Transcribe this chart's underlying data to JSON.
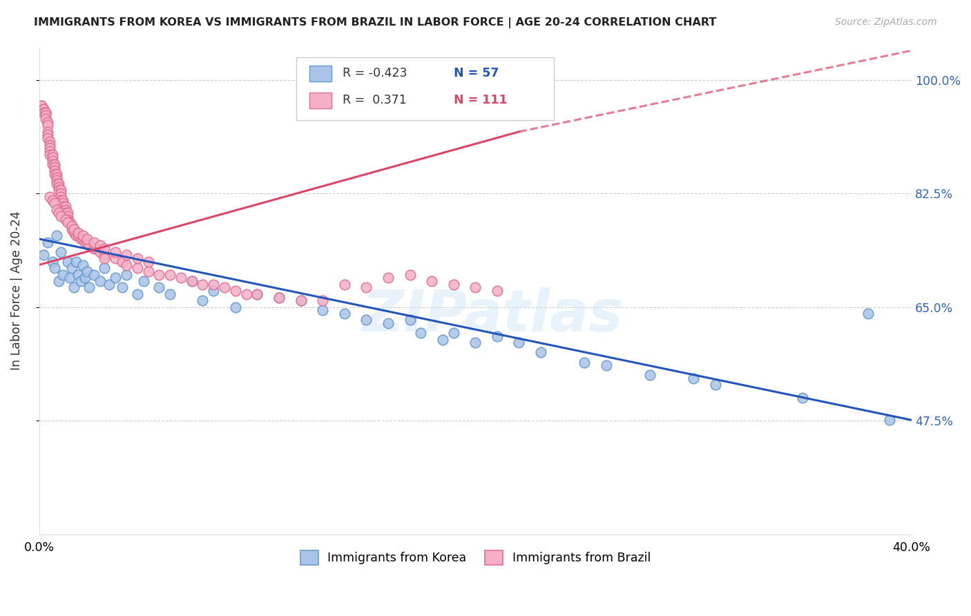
{
  "title": "IMMIGRANTS FROM KOREA VS IMMIGRANTS FROM BRAZIL IN LABOR FORCE | AGE 20-24 CORRELATION CHART",
  "source": "Source: ZipAtlas.com",
  "ylabel": "In Labor Force | Age 20-24",
  "xlim": [
    0.0,
    0.4
  ],
  "ylim": [
    0.3,
    1.05
  ],
  "ytick_vals": [
    0.475,
    0.65,
    0.825,
    1.0
  ],
  "ytick_labels": [
    "47.5%",
    "65.0%",
    "82.5%",
    "100.0%"
  ],
  "xtick_vals": [
    0.0,
    0.1,
    0.2,
    0.3,
    0.4
  ],
  "xtick_labels": [
    "0.0%",
    "",
    "",
    "",
    "40.0%"
  ],
  "korea_color": "#aac4e8",
  "brazil_color": "#f5b0c8",
  "korea_edge": "#6699cc",
  "brazil_edge": "#e07090",
  "korea_line_color": "#2255bb",
  "brazil_line_color": "#dd4466",
  "korea_R": -0.423,
  "korea_N": 57,
  "brazil_R": 0.371,
  "brazil_N": 111,
  "watermark": "ZIPatlas",
  "legend_korea": "Immigrants from Korea",
  "legend_brazil": "Immigrants from Brazil",
  "korea_pts": [
    [
      0.002,
      0.73
    ],
    [
      0.004,
      0.75
    ],
    [
      0.006,
      0.72
    ],
    [
      0.007,
      0.71
    ],
    [
      0.008,
      0.76
    ],
    [
      0.009,
      0.69
    ],
    [
      0.01,
      0.735
    ],
    [
      0.011,
      0.7
    ],
    [
      0.013,
      0.72
    ],
    [
      0.014,
      0.695
    ],
    [
      0.015,
      0.71
    ],
    [
      0.016,
      0.68
    ],
    [
      0.017,
      0.72
    ],
    [
      0.018,
      0.7
    ],
    [
      0.019,
      0.69
    ],
    [
      0.02,
      0.715
    ],
    [
      0.021,
      0.695
    ],
    [
      0.022,
      0.705
    ],
    [
      0.023,
      0.68
    ],
    [
      0.025,
      0.7
    ],
    [
      0.028,
      0.69
    ],
    [
      0.03,
      0.71
    ],
    [
      0.032,
      0.685
    ],
    [
      0.035,
      0.695
    ],
    [
      0.038,
      0.68
    ],
    [
      0.04,
      0.7
    ],
    [
      0.045,
      0.67
    ],
    [
      0.048,
      0.69
    ],
    [
      0.055,
      0.68
    ],
    [
      0.06,
      0.67
    ],
    [
      0.07,
      0.69
    ],
    [
      0.075,
      0.66
    ],
    [
      0.08,
      0.675
    ],
    [
      0.09,
      0.65
    ],
    [
      0.1,
      0.67
    ],
    [
      0.11,
      0.665
    ],
    [
      0.12,
      0.66
    ],
    [
      0.13,
      0.645
    ],
    [
      0.14,
      0.64
    ],
    [
      0.15,
      0.63
    ],
    [
      0.16,
      0.625
    ],
    [
      0.17,
      0.63
    ],
    [
      0.175,
      0.61
    ],
    [
      0.185,
      0.6
    ],
    [
      0.19,
      0.61
    ],
    [
      0.2,
      0.595
    ],
    [
      0.21,
      0.605
    ],
    [
      0.22,
      0.595
    ],
    [
      0.23,
      0.58
    ],
    [
      0.25,
      0.565
    ],
    [
      0.26,
      0.56
    ],
    [
      0.28,
      0.545
    ],
    [
      0.3,
      0.54
    ],
    [
      0.31,
      0.53
    ],
    [
      0.35,
      0.51
    ],
    [
      0.38,
      0.64
    ],
    [
      0.39,
      0.476
    ]
  ],
  "brazil_pts": [
    [
      0.001,
      0.96
    ],
    [
      0.001,
      0.96
    ],
    [
      0.002,
      0.955
    ],
    [
      0.002,
      0.955
    ],
    [
      0.002,
      0.95
    ],
    [
      0.003,
      0.95
    ],
    [
      0.003,
      0.95
    ],
    [
      0.003,
      0.945
    ],
    [
      0.003,
      0.94
    ],
    [
      0.004,
      0.935
    ],
    [
      0.004,
      0.93
    ],
    [
      0.004,
      0.92
    ],
    [
      0.004,
      0.915
    ],
    [
      0.004,
      0.91
    ],
    [
      0.005,
      0.905
    ],
    [
      0.005,
      0.9
    ],
    [
      0.005,
      0.895
    ],
    [
      0.005,
      0.89
    ],
    [
      0.005,
      0.885
    ],
    [
      0.006,
      0.885
    ],
    [
      0.006,
      0.88
    ],
    [
      0.006,
      0.875
    ],
    [
      0.006,
      0.87
    ],
    [
      0.007,
      0.87
    ],
    [
      0.007,
      0.865
    ],
    [
      0.007,
      0.86
    ],
    [
      0.007,
      0.855
    ],
    [
      0.008,
      0.855
    ],
    [
      0.008,
      0.85
    ],
    [
      0.008,
      0.845
    ],
    [
      0.008,
      0.84
    ],
    [
      0.009,
      0.84
    ],
    [
      0.009,
      0.835
    ],
    [
      0.009,
      0.83
    ],
    [
      0.01,
      0.83
    ],
    [
      0.01,
      0.825
    ],
    [
      0.01,
      0.82
    ],
    [
      0.01,
      0.815
    ],
    [
      0.011,
      0.815
    ],
    [
      0.011,
      0.81
    ],
    [
      0.011,
      0.805
    ],
    [
      0.012,
      0.805
    ],
    [
      0.012,
      0.8
    ],
    [
      0.012,
      0.795
    ],
    [
      0.013,
      0.795
    ],
    [
      0.013,
      0.79
    ],
    [
      0.013,
      0.785
    ],
    [
      0.014,
      0.78
    ],
    [
      0.014,
      0.78
    ],
    [
      0.015,
      0.775
    ],
    [
      0.015,
      0.77
    ],
    [
      0.016,
      0.77
    ],
    [
      0.016,
      0.765
    ],
    [
      0.017,
      0.76
    ],
    [
      0.018,
      0.76
    ],
    [
      0.019,
      0.755
    ],
    [
      0.02,
      0.755
    ],
    [
      0.021,
      0.75
    ],
    [
      0.022,
      0.75
    ],
    [
      0.023,
      0.745
    ],
    [
      0.025,
      0.74
    ],
    [
      0.026,
      0.74
    ],
    [
      0.028,
      0.735
    ],
    [
      0.03,
      0.73
    ],
    [
      0.03,
      0.725
    ],
    [
      0.035,
      0.725
    ],
    [
      0.038,
      0.72
    ],
    [
      0.04,
      0.715
    ],
    [
      0.045,
      0.71
    ],
    [
      0.05,
      0.705
    ],
    [
      0.055,
      0.7
    ],
    [
      0.06,
      0.7
    ],
    [
      0.065,
      0.695
    ],
    [
      0.07,
      0.69
    ],
    [
      0.075,
      0.685
    ],
    [
      0.08,
      0.685
    ],
    [
      0.085,
      0.68
    ],
    [
      0.09,
      0.675
    ],
    [
      0.095,
      0.67
    ],
    [
      0.1,
      0.67
    ],
    [
      0.11,
      0.665
    ],
    [
      0.12,
      0.66
    ],
    [
      0.13,
      0.66
    ],
    [
      0.14,
      0.685
    ],
    [
      0.15,
      0.68
    ],
    [
      0.16,
      0.695
    ],
    [
      0.17,
      0.7
    ],
    [
      0.18,
      0.69
    ],
    [
      0.19,
      0.685
    ],
    [
      0.2,
      0.68
    ],
    [
      0.21,
      0.675
    ],
    [
      0.005,
      0.82
    ],
    [
      0.006,
      0.815
    ],
    [
      0.007,
      0.81
    ],
    [
      0.008,
      0.8
    ],
    [
      0.009,
      0.795
    ],
    [
      0.01,
      0.79
    ],
    [
      0.012,
      0.785
    ],
    [
      0.013,
      0.78
    ],
    [
      0.015,
      0.775
    ],
    [
      0.016,
      0.77
    ],
    [
      0.018,
      0.765
    ],
    [
      0.02,
      0.76
    ],
    [
      0.022,
      0.755
    ],
    [
      0.025,
      0.75
    ],
    [
      0.028,
      0.745
    ],
    [
      0.03,
      0.74
    ],
    [
      0.035,
      0.735
    ],
    [
      0.04,
      0.73
    ],
    [
      0.045,
      0.725
    ],
    [
      0.05,
      0.72
    ]
  ]
}
